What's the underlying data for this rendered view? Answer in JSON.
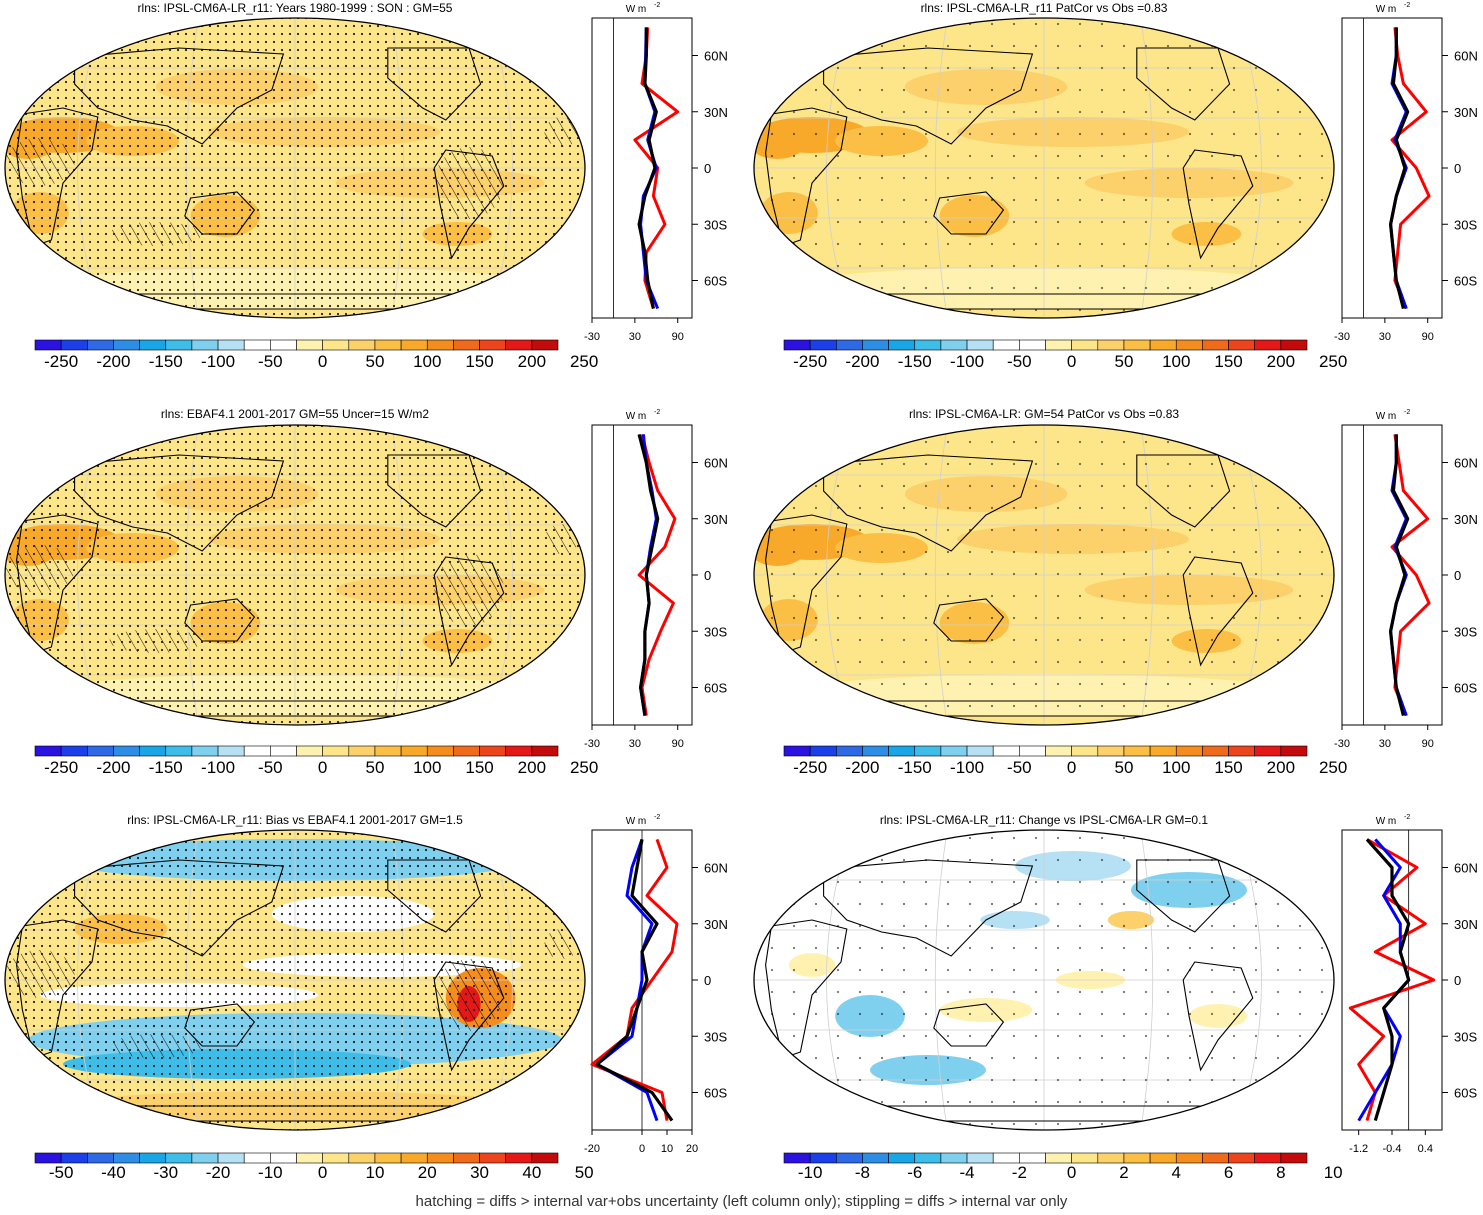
{
  "panels": [
    {
      "title": "rlns: IPSL-CM6A-LR_r11: Years 1980-1999 : SON : GM=55",
      "cbar_labels": [
        "-250",
        "-200",
        "-150",
        "-100",
        "-50",
        "0",
        "50",
        "100",
        "150",
        "200",
        "250"
      ],
      "map_style": "abs",
      "hatch": "heavy",
      "stipple": "dense",
      "profile_xticks": [
        "-30",
        "30",
        "90"
      ]
    },
    {
      "title": "rlns: IPSL-CM6A-LR_r11 PatCor vs Obs =0.83",
      "cbar_labels": [
        "-250",
        "-200",
        "-150",
        "-100",
        "-50",
        "0",
        "50",
        "100",
        "150",
        "200",
        "250"
      ],
      "map_style": "abs",
      "hatch": "none",
      "stipple": "sparse",
      "profile_xticks": [
        "-30",
        "30",
        "90"
      ]
    },
    {
      "title": "rlns: EBAF4.1 2001-2017 GM=55 Uncer=15 W/m2",
      "cbar_labels": [
        "-250",
        "-200",
        "-150",
        "-100",
        "-50",
        "0",
        "50",
        "100",
        "150",
        "200",
        "250"
      ],
      "map_style": "abs",
      "hatch": "heavy",
      "stipple": "dense",
      "profile_xticks": [
        "-30",
        "30",
        "90"
      ]
    },
    {
      "title": "rlns: IPSL-CM6A-LR: GM=54 PatCor vs Obs =0.83",
      "cbar_labels": [
        "-250",
        "-200",
        "-150",
        "-100",
        "-50",
        "0",
        "50",
        "100",
        "150",
        "200",
        "250"
      ],
      "map_style": "abs",
      "hatch": "none",
      "stipple": "sparse",
      "profile_xticks": [
        "-30",
        "30",
        "90"
      ]
    },
    {
      "title": "rlns: IPSL-CM6A-LR_r11: Bias vs EBAF4.1 2001-2017  GM=1.5",
      "cbar_labels": [
        "-50",
        "-40",
        "-30",
        "-20",
        "-10",
        "0",
        "10",
        "20",
        "30",
        "40",
        "50"
      ],
      "map_style": "bias",
      "hatch": "heavy",
      "stipple": "dense",
      "profile_xticks": [
        "-20",
        "0",
        "10",
        "20"
      ]
    },
    {
      "title": "rlns: IPSL-CM6A-LR_r11: Change vs IPSL-CM6A-LR GM=0.1",
      "cbar_labels": [
        "-10",
        "-8",
        "-6",
        "-4",
        "-2",
        "0",
        "2",
        "4",
        "6",
        "8",
        "10"
      ],
      "map_style": "change",
      "hatch": "none",
      "stipple": "sparse",
      "profile_xticks": [
        "-1.2",
        "-0.4",
        "0.4"
      ]
    }
  ],
  "profile_unit": "W m",
  "profile_unit_sup": "-2",
  "lat_labels": [
    "60N",
    "30N",
    "0",
    "30S",
    "60S"
  ],
  "footer": "hatching = diffs > internal var+obs uncertainty (left column only); stippling = diffs > internal var only",
  "colorbar_colors": [
    "#2a12e0",
    "#1b3fe8",
    "#2f6ae6",
    "#2e8ee6",
    "#1aa6e6",
    "#3dbde8",
    "#7fd0ef",
    "#b6e1f4",
    "#ffffff",
    "#ffffff",
    "#fff2b0",
    "#fde58a",
    "#fcd06a",
    "#fbbf45",
    "#f8a92a",
    "#f58d1e",
    "#f06a1c",
    "#ec441c",
    "#e51818",
    "#c40b0b"
  ],
  "line_colors": {
    "model": "#ff0000",
    "obs": "#0000ff",
    "ref": "#000000"
  },
  "chart_data": [
    {
      "type": "map+profile",
      "title": "rlns: IPSL-CM6A-LR_r11: Years 1980-1999 : SON : GM=55",
      "colorbar": [
        -250,
        -200,
        -150,
        -100,
        -50,
        0,
        50,
        100,
        150,
        200,
        250
      ],
      "profile_lat": [
        75,
        60,
        45,
        30,
        15,
        0,
        -15,
        -30,
        -45,
        -60,
        -75
      ],
      "profile_xlim": [
        -30,
        110
      ],
      "series": [
        {
          "color": "red",
          "values": [
            48,
            46,
            40,
            90,
            30,
            62,
            56,
            72,
            46,
            44,
            56
          ]
        },
        {
          "color": "blue",
          "values": [
            46,
            45,
            44,
            58,
            48,
            60,
            42,
            38,
            42,
            46,
            62
          ]
        },
        {
          "color": "black",
          "values": [
            46,
            46,
            44,
            60,
            50,
            58,
            44,
            36,
            44,
            48,
            56
          ]
        }
      ]
    },
    {
      "type": "map+profile",
      "title": "rlns: IPSL-CM6A-LR_r11 PatCor vs Obs =0.83",
      "colorbar": [
        -250,
        -200,
        -150,
        -100,
        -50,
        0,
        50,
        100,
        150,
        200,
        250
      ],
      "profile_lat": [
        75,
        60,
        45,
        30,
        15,
        0,
        -15,
        -30,
        -45,
        -60,
        -75
      ],
      "profile_xlim": [
        -30,
        110
      ],
      "series": [
        {
          "color": "red",
          "values": [
            44,
            48,
            56,
            88,
            40,
            74,
            92,
            52,
            48,
            44,
            60
          ]
        },
        {
          "color": "blue",
          "values": [
            46,
            46,
            40,
            60,
            44,
            60,
            46,
            38,
            42,
            46,
            60
          ]
        },
        {
          "color": "black",
          "values": [
            46,
            46,
            42,
            62,
            46,
            58,
            46,
            38,
            42,
            46,
            56
          ]
        }
      ]
    },
    {
      "type": "map+profile",
      "title": "rlns: EBAF4.1 2001-2017 GM=55 Uncer=15 W/m2",
      "colorbar": [
        -250,
        -200,
        -150,
        -100,
        -50,
        0,
        50,
        100,
        150,
        200,
        250
      ],
      "profile_lat": [
        75,
        60,
        45,
        30,
        15,
        0,
        -15,
        -30,
        -45,
        -60,
        -75
      ],
      "profile_xlim": [
        -30,
        110
      ],
      "series": [
        {
          "color": "red",
          "values": [
            40,
            50,
            62,
            86,
            72,
            36,
            84,
            66,
            50,
            40,
            46
          ]
        },
        {
          "color": "blue",
          "values": [
            42,
            46,
            54,
            60,
            52,
            46,
            50,
            44,
            44,
            38,
            44
          ]
        },
        {
          "color": "black",
          "values": [
            36,
            46,
            52,
            62,
            54,
            46,
            50,
            44,
            44,
            38,
            44
          ]
        }
      ]
    },
    {
      "type": "map+profile",
      "title": "rlns: IPSL-CM6A-LR: GM=54 PatCor vs Obs =0.83",
      "colorbar": [
        -250,
        -200,
        -150,
        -100,
        -50,
        0,
        50,
        100,
        150,
        200,
        250
      ],
      "profile_lat": [
        75,
        60,
        45,
        30,
        15,
        0,
        -15,
        -30,
        -45,
        -60,
        -75
      ],
      "profile_xlim": [
        -30,
        110
      ],
      "series": [
        {
          "color": "red",
          "values": [
            44,
            50,
            56,
            90,
            40,
            74,
            92,
            52,
            48,
            44,
            60
          ]
        },
        {
          "color": "blue",
          "values": [
            46,
            46,
            40,
            60,
            44,
            60,
            46,
            38,
            42,
            46,
            60
          ]
        },
        {
          "color": "black",
          "values": [
            46,
            46,
            42,
            62,
            46,
            58,
            46,
            38,
            42,
            46,
            56
          ]
        }
      ]
    },
    {
      "type": "map+profile",
      "title": "rlns: IPSL-CM6A-LR_r11: Bias vs EBAF4.1 2001-2017  GM=1.5",
      "colorbar": [
        -50,
        -40,
        -30,
        -20,
        -10,
        0,
        10,
        20,
        30,
        40,
        50
      ],
      "profile_lat": [
        75,
        60,
        45,
        30,
        15,
        0,
        -15,
        -30,
        -45,
        -60,
        -75
      ],
      "profile_xlim": [
        -20,
        20
      ],
      "series": [
        {
          "color": "red",
          "values": [
            6,
            10,
            2,
            14,
            12,
            4,
            -4,
            -6,
            -20,
            8,
            10
          ]
        },
        {
          "color": "blue",
          "values": [
            0,
            -4,
            -6,
            4,
            0,
            0,
            -2,
            -4,
            -18,
            2,
            6
          ]
        },
        {
          "color": "black",
          "values": [
            0,
            -2,
            -4,
            6,
            0,
            2,
            -2,
            -6,
            -18,
            4,
            12
          ]
        }
      ]
    },
    {
      "type": "map+profile",
      "title": "rlns: IPSL-CM6A-LR_r11: Change vs IPSL-CM6A-LR GM=0.1",
      "colorbar": [
        -10,
        -8,
        -6,
        -4,
        -2,
        0,
        2,
        4,
        6,
        8,
        10
      ],
      "profile_lat": [
        75,
        60,
        45,
        30,
        15,
        0,
        -15,
        -30,
        -45,
        -60,
        -75
      ],
      "profile_xlim": [
        -1.6,
        0.8
      ],
      "series": [
        {
          "color": "red",
          "values": [
            -1.0,
            0.2,
            -0.6,
            0.4,
            -0.8,
            0.6,
            -1.4,
            -0.6,
            -1.2,
            -0.8,
            -1.0
          ]
        },
        {
          "color": "blue",
          "values": [
            -0.8,
            -0.2,
            -0.6,
            -0.2,
            -0.2,
            0.0,
            -0.6,
            -0.2,
            -0.4,
            -0.8,
            -1.2
          ]
        },
        {
          "color": "black",
          "values": [
            -1.0,
            -0.4,
            -0.4,
            0.0,
            -0.2,
            0.0,
            -0.6,
            -0.4,
            -0.4,
            -0.6,
            -0.8
          ]
        }
      ]
    }
  ]
}
